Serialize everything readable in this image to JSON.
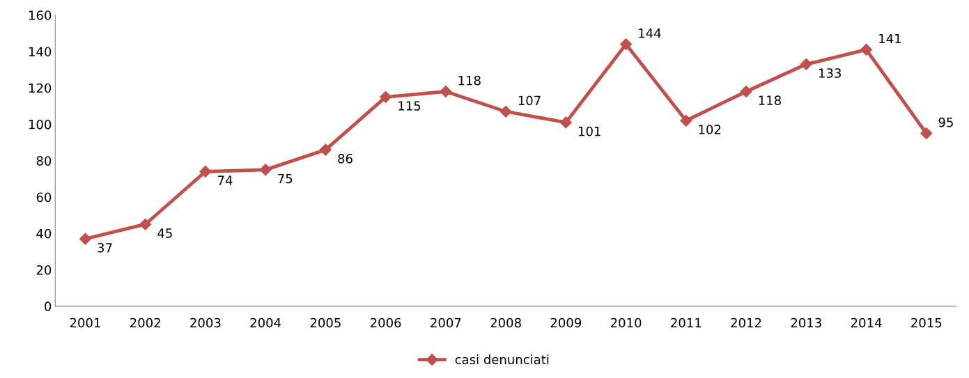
{
  "chart_data": {
    "type": "line",
    "categories": [
      "2001",
      "2002",
      "2003",
      "2004",
      "2005",
      "2006",
      "2007",
      "2008",
      "2009",
      "2010",
      "2011",
      "2012",
      "2013",
      "2014",
      "2015"
    ],
    "series": [
      {
        "name": "casi denunciati",
        "color": "#c0504d",
        "values": [
          37,
          45,
          74,
          75,
          86,
          115,
          118,
          107,
          101,
          144,
          102,
          118,
          133,
          141,
          95
        ]
      }
    ],
    "ylim": [
      0,
      160
    ],
    "yticks": [
      0,
      20,
      40,
      60,
      80,
      100,
      120,
      140,
      160
    ],
    "grid": false,
    "legend": "bottom",
    "marker": "diamond",
    "line_style": "solid",
    "data_labels": true
  }
}
